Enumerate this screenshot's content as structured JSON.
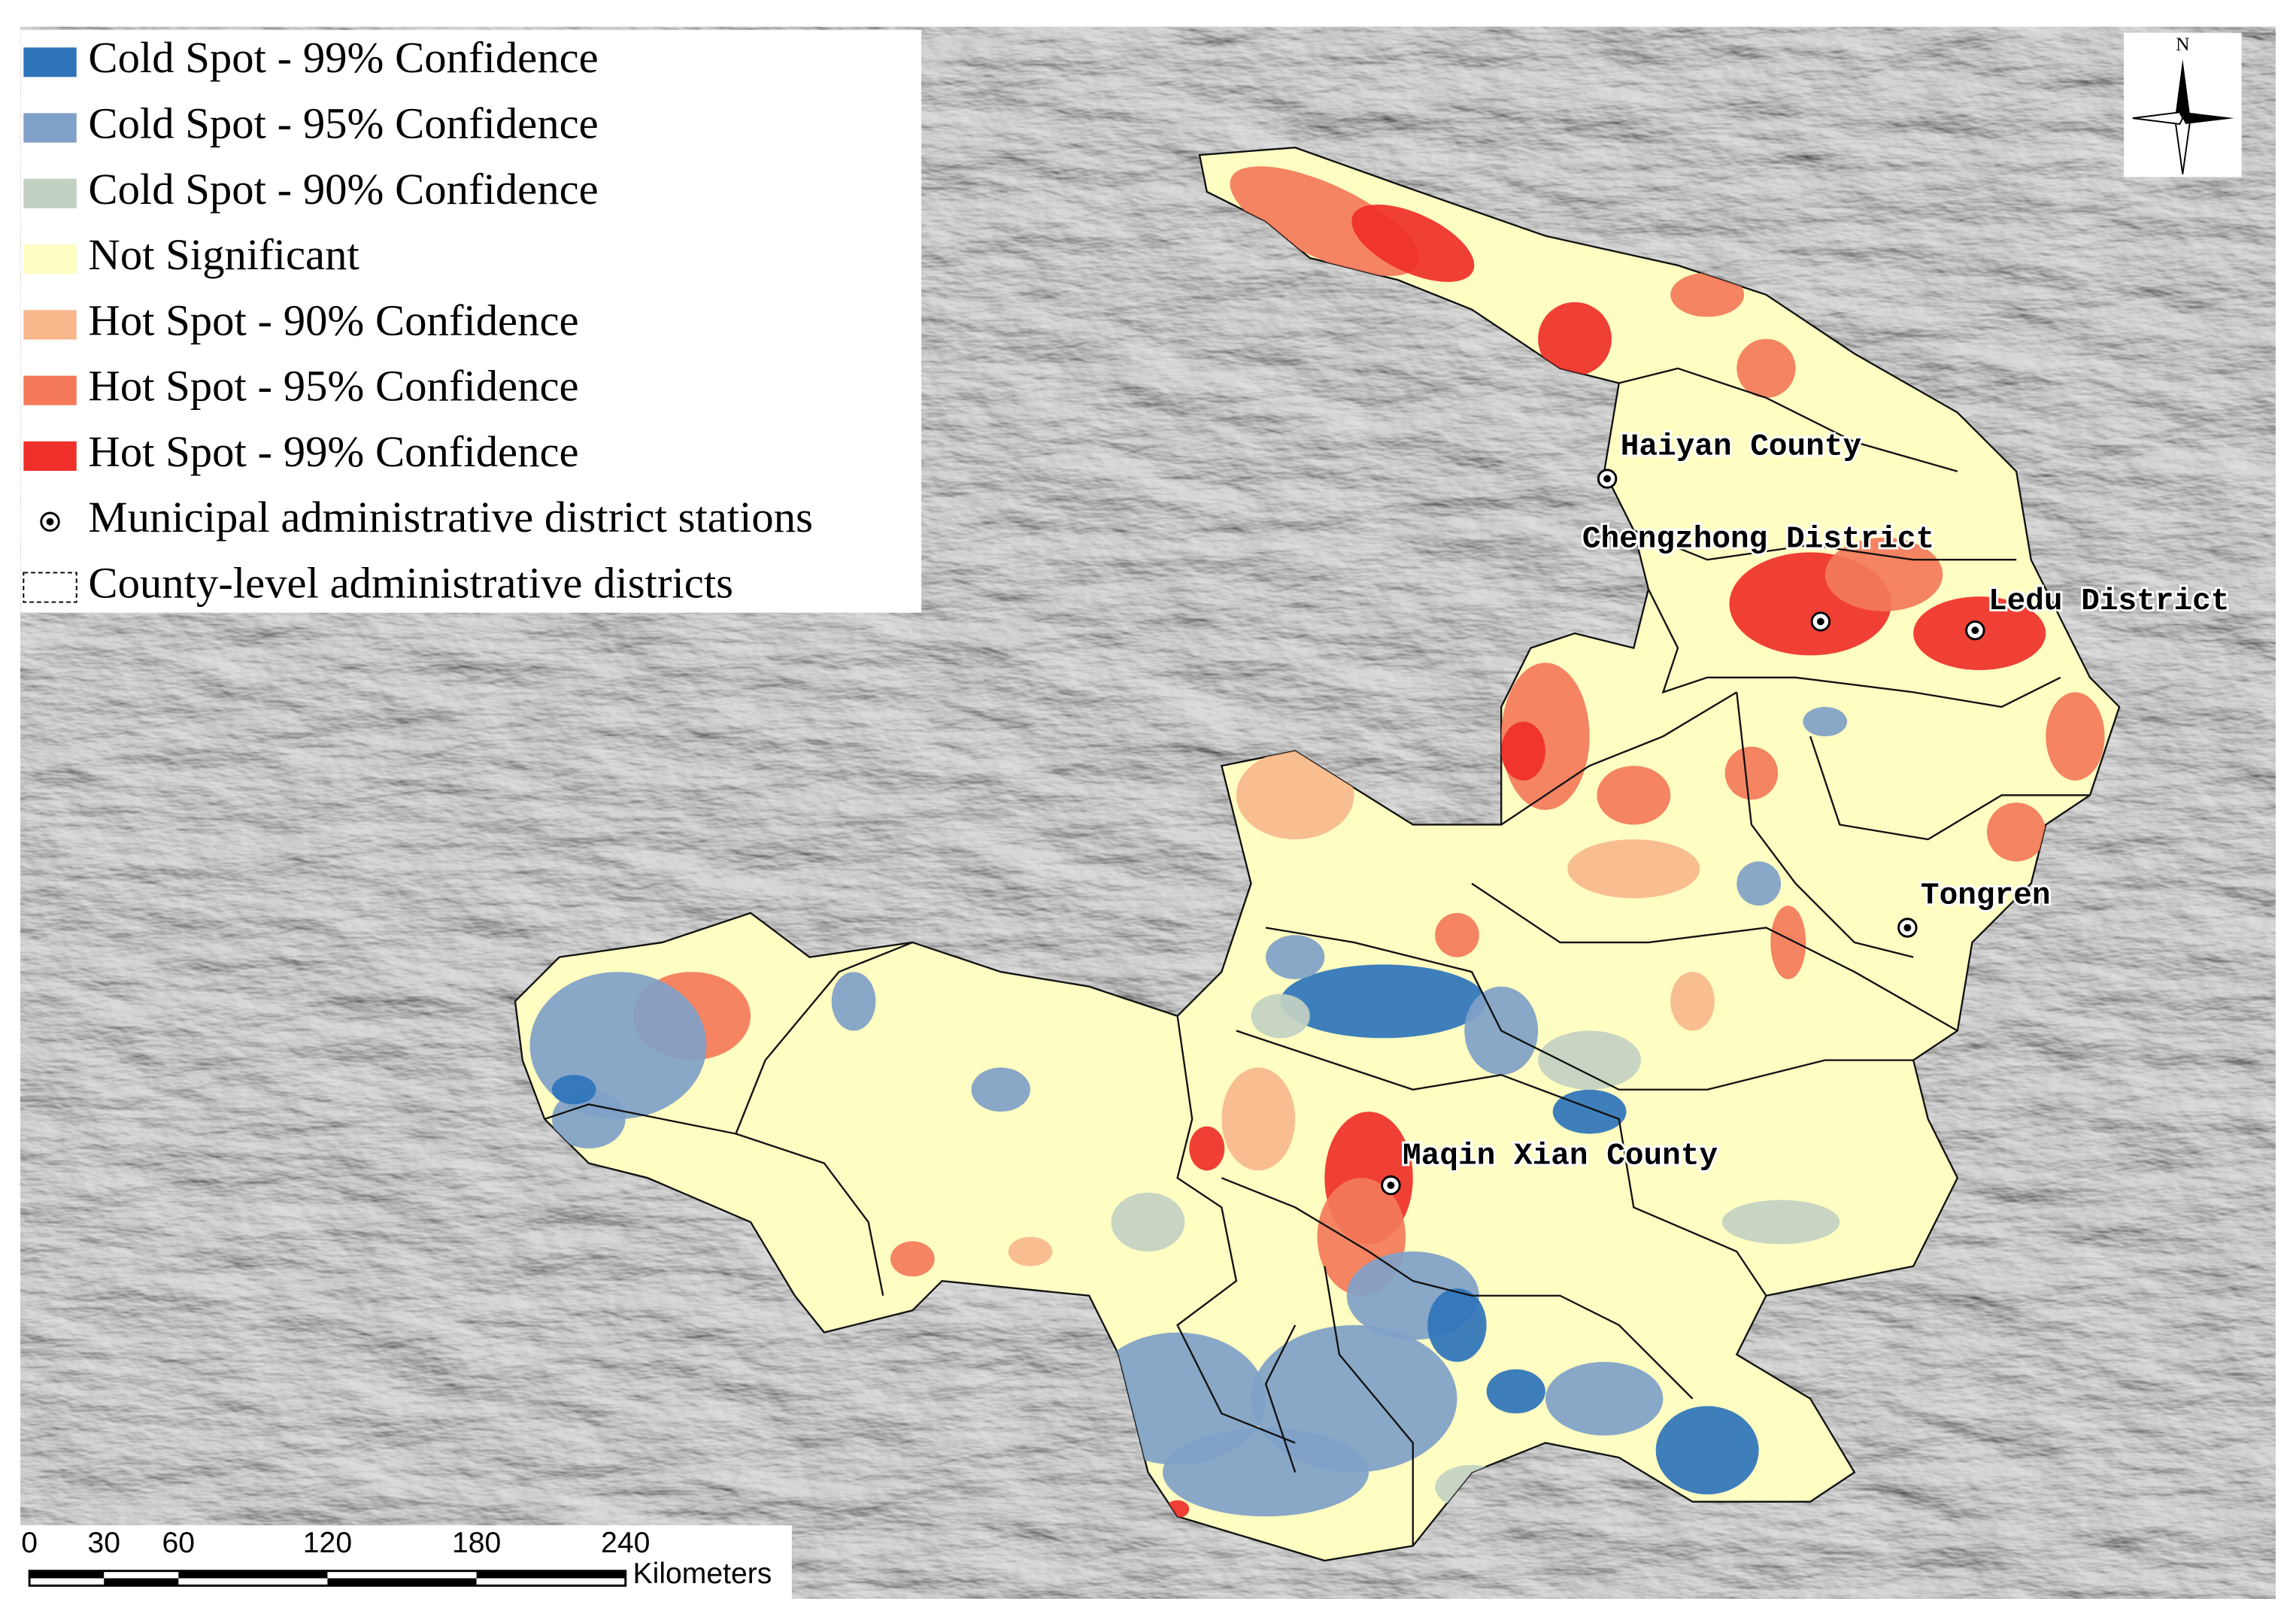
{
  "legend": {
    "items": [
      {
        "label": "Cold Spot - 99% Confidence",
        "color": "#2e74bb"
      },
      {
        "label": "Cold Spot - 95% Confidence",
        "color": "#7fa1c8"
      },
      {
        "label": "Cold Spot - 90% Confidence",
        "color": "#c3d1c2"
      },
      {
        "label": "Not Significant",
        "color": "#fefdc2"
      },
      {
        "label": "Hot Spot - 90% Confidence",
        "color": "#f8b88c"
      },
      {
        "label": "Hot Spot - 95% Confidence",
        "color": "#f3795a"
      },
      {
        "label": "Hot Spot - 99% Confidence",
        "color": "#ef2f29"
      },
      {
        "label": "Municipal administrative district stations"
      },
      {
        "label": "County-level administrative districts"
      }
    ]
  },
  "places": [
    {
      "label": "Haiyan County"
    },
    {
      "label": "Chengzhong District"
    },
    {
      "label": "Ledu District"
    },
    {
      "label": "Tongren"
    },
    {
      "label": "Maqin Xian County"
    }
  ],
  "north_arrow": {
    "label": "N"
  },
  "scale_bar": {
    "ticks": [
      0,
      30,
      60,
      120,
      180,
      240
    ],
    "unit": "Kilometers"
  }
}
